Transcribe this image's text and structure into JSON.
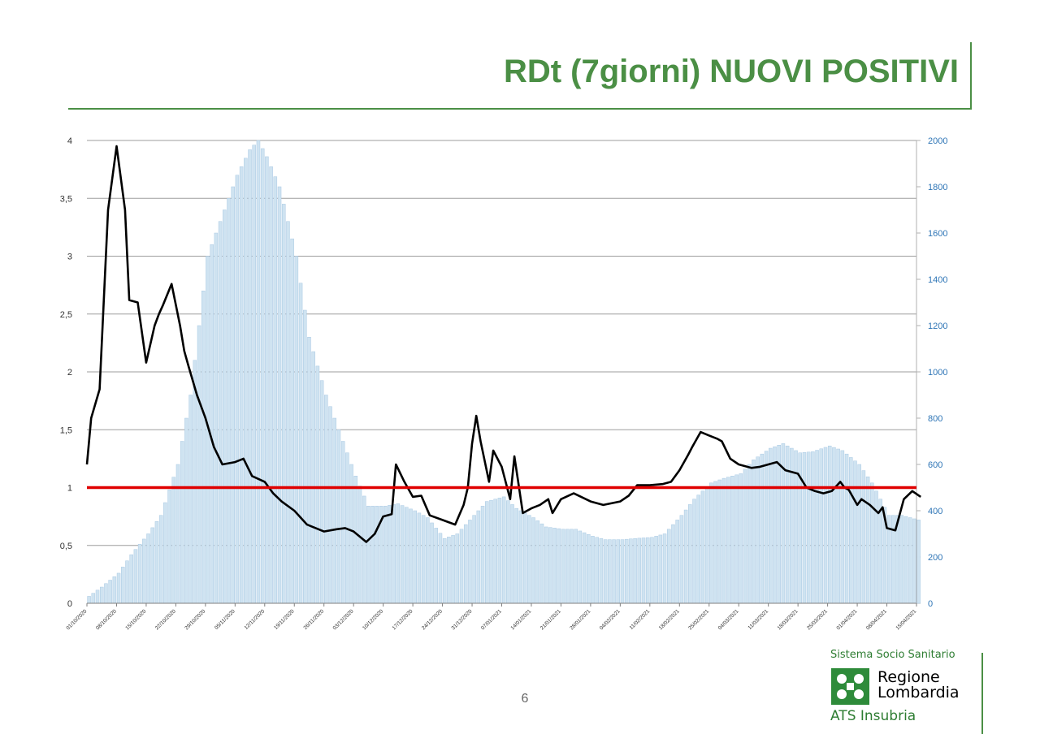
{
  "slide": {
    "title": "RDt (7giorni) NUOVI POSITIVI",
    "page_number": "6"
  },
  "logo": {
    "top_text": "Sistema Socio Sanitario",
    "name_line1": "Regione",
    "name_line2": "Lombardia",
    "bottom_text": "ATS Insubria"
  },
  "colors": {
    "title": "#4b8f45",
    "bars": "#cfe3f1",
    "bars_edge": "#a9c9e3",
    "line": "#000000",
    "threshold": "#e00000",
    "right_axis": "#2e75b6",
    "brand_green": "#2e8b3a"
  },
  "chart_data": {
    "type": "bar",
    "title": "",
    "left_axis": {
      "ylim": [
        0,
        4
      ],
      "ticks": [
        "0",
        "0,5",
        "1",
        "1,5",
        "2",
        "2,5",
        "3",
        "3,5",
        "4"
      ]
    },
    "right_axis": {
      "ylim": [
        0,
        2000
      ],
      "ticks": [
        "0",
        "200",
        "400",
        "600",
        "800",
        "1000",
        "1200",
        "1400",
        "1600",
        "1800",
        "2000"
      ]
    },
    "grid": "horizontal",
    "x_tick_labels": [
      "01/10/2020",
      "08/10/2020",
      "15/10/2020",
      "22/10/2020",
      "29/10/2020",
      "05/11/2020",
      "12/11/2020",
      "19/11/2020",
      "26/11/2020",
      "03/12/2020",
      "10/12/2020",
      "17/12/2020",
      "24/12/2020",
      "31/12/2020",
      "07/01/2021",
      "14/01/2021",
      "21/01/2021",
      "28/01/2021",
      "04/02/2021",
      "11/02/2021",
      "18/02/2021",
      "25/02/2021",
      "04/03/2021",
      "11/03/2021",
      "18/03/2021",
      "25/03/2021",
      "01/04/2021",
      "08/04/2021",
      "15/04/2021"
    ],
    "series": [
      {
        "kind": "bar",
        "axis": "right",
        "x": [
          "01/10/2020",
          "04/10/2020",
          "08/10/2020",
          "11/10/2020",
          "15/10/2020",
          "18/10/2020",
          "22/10/2020",
          "25/10/2020",
          "29/10/2020",
          "01/11/2020",
          "05/11/2020",
          "08/11/2020",
          "10/11/2020",
          "12/11/2020",
          "15/11/2020",
          "19/11/2020",
          "22/11/2020",
          "26/11/2020",
          "29/11/2020",
          "03/12/2020",
          "06/12/2020",
          "10/12/2020",
          "13/12/2020",
          "17/12/2020",
          "20/12/2020",
          "24/12/2020",
          "27/12/2020",
          "31/12/2020",
          "03/01/2021",
          "07/01/2021",
          "10/01/2021",
          "14/01/2021",
          "17/01/2021",
          "21/01/2021",
          "24/01/2021",
          "28/01/2021",
          "31/01/2021",
          "04/02/2021",
          "07/02/2021",
          "11/02/2021",
          "14/02/2021",
          "18/02/2021",
          "21/02/2021",
          "25/02/2021",
          "28/02/2021",
          "04/03/2021",
          "07/03/2021",
          "11/03/2021",
          "14/03/2021",
          "18/03/2021",
          "21/03/2021",
          "25/03/2021",
          "28/03/2021",
          "01/04/2021",
          "04/04/2021",
          "08/04/2021",
          "11/04/2021",
          "15/04/2021",
          "17/04/2021"
        ],
        "values": [
          30,
          70,
          130,
          210,
          300,
          380,
          600,
          900,
          1500,
          1650,
          1850,
          1960,
          2000,
          1930,
          1800,
          1500,
          1150,
          900,
          750,
          550,
          420,
          420,
          430,
          400,
          370,
          280,
          300,
          380,
          440,
          460,
          410,
          370,
          330,
          320,
          320,
          290,
          275,
          275,
          280,
          285,
          300,
          380,
          450,
          520,
          540,
          560,
          620,
          670,
          690,
          650,
          655,
          680,
          660,
          600,
          520,
          380,
          380,
          360,
          340
        ]
      },
      {
        "kind": "line",
        "name": "RDt",
        "axis": "left",
        "x": [
          "01/10/2020",
          "02/10/2020",
          "04/10/2020",
          "06/10/2020",
          "08/10/2020",
          "10/10/2020",
          "11/10/2020",
          "13/10/2020",
          "15/10/2020",
          "17/10/2020",
          "18/10/2020",
          "19/10/2020",
          "21/10/2020",
          "23/10/2020",
          "24/10/2020",
          "25/10/2020",
          "27/10/2020",
          "29/10/2020",
          "31/10/2020",
          "02/11/2020",
          "05/11/2020",
          "07/11/2020",
          "09/11/2020",
          "12/11/2020",
          "14/11/2020",
          "16/11/2020",
          "19/11/2020",
          "22/11/2020",
          "26/11/2020",
          "29/11/2020",
          "01/12/2020",
          "03/12/2020",
          "06/12/2020",
          "08/12/2020",
          "10/12/2020",
          "12/12/2020",
          "13/12/2020",
          "15/12/2020",
          "17/12/2020",
          "19/12/2020",
          "21/12/2020",
          "24/12/2020",
          "27/12/2020",
          "29/12/2020",
          "30/12/2020",
          "31/12/2020",
          "01/01/2021",
          "02/01/2021",
          "04/01/2021",
          "05/01/2021",
          "07/01/2021",
          "09/01/2021",
          "10/01/2021",
          "12/01/2021",
          "14/01/2021",
          "16/01/2021",
          "18/01/2021",
          "19/01/2021",
          "21/01/2021",
          "24/01/2021",
          "28/01/2021",
          "31/01/2021",
          "04/02/2021",
          "06/02/2021",
          "08/02/2021",
          "11/02/2021",
          "14/02/2021",
          "16/02/2021",
          "18/02/2021",
          "20/02/2021",
          "21/02/2021",
          "23/02/2021",
          "25/02/2021",
          "27/02/2021",
          "28/02/2021",
          "02/03/2021",
          "04/03/2021",
          "07/03/2021",
          "09/03/2021",
          "11/03/2021",
          "13/03/2021",
          "15/03/2021",
          "18/03/2021",
          "20/03/2021",
          "22/03/2021",
          "24/03/2021",
          "26/03/2021",
          "28/03/2021",
          "29/03/2021",
          "30/03/2021",
          "01/04/2021",
          "02/04/2021",
          "04/04/2021",
          "06/04/2021",
          "07/04/2021",
          "08/04/2021",
          "10/04/2021",
          "12/04/2021",
          "14/04/2021",
          "16/04/2021"
        ],
        "values": [
          1.2,
          1.6,
          1.85,
          3.4,
          3.95,
          3.4,
          2.62,
          2.6,
          2.08,
          2.4,
          2.5,
          2.58,
          2.76,
          2.4,
          2.18,
          2.05,
          1.8,
          1.6,
          1.35,
          1.2,
          1.22,
          1.25,
          1.1,
          1.05,
          0.95,
          0.88,
          0.8,
          0.68,
          0.62,
          0.64,
          0.65,
          0.62,
          0.53,
          0.6,
          0.75,
          0.77,
          1.2,
          1.05,
          0.92,
          0.93,
          0.76,
          0.72,
          0.68,
          0.85,
          1.0,
          1.38,
          1.62,
          1.4,
          1.05,
          1.32,
          1.18,
          0.9,
          1.27,
          0.78,
          0.82,
          0.85,
          0.9,
          0.78,
          0.9,
          0.95,
          0.88,
          0.85,
          0.88,
          0.93,
          1.02,
          1.02,
          1.03,
          1.05,
          1.15,
          1.28,
          1.35,
          1.48,
          1.45,
          1.42,
          1.4,
          1.25,
          1.2,
          1.17,
          1.18,
          1.2,
          1.22,
          1.15,
          1.12,
          1.0,
          0.97,
          0.95,
          0.97,
          1.05,
          1.0,
          0.98,
          0.85,
          0.9,
          0.85,
          0.78,
          0.83,
          0.65,
          0.63,
          0.9,
          0.97,
          0.92
        ]
      }
    ],
    "threshold": {
      "value": 1,
      "axis": "left"
    }
  }
}
